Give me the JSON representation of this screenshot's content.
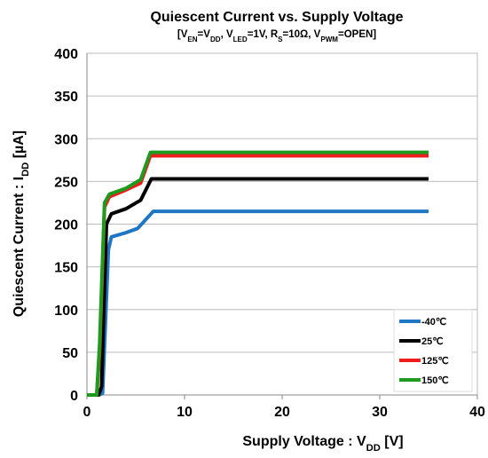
{
  "chart_data": {
    "type": "line",
    "title": "Quiescent Current vs. Supply Voltage",
    "subtitle_parts": [
      {
        "text": "[V"
      },
      {
        "text": "EN",
        "sub": true
      },
      {
        "text": "=V"
      },
      {
        "text": "DD",
        "sub": true
      },
      {
        "text": ", V"
      },
      {
        "text": "LED",
        "sub": true
      },
      {
        "text": "=1V, R"
      },
      {
        "text": "S",
        "sub": true
      },
      {
        "text": "=10Ω, V"
      },
      {
        "text": "PWM",
        "sub": true
      },
      {
        "text": "=OPEN]"
      }
    ],
    "x_label_parts": [
      {
        "text": "Supply Voltage : V"
      },
      {
        "text": "DD",
        "sub": true
      },
      {
        "text": " [V]"
      }
    ],
    "y_label_parts": [
      {
        "text": "Quiescent Current : I"
      },
      {
        "text": "DD",
        "sub": true
      },
      {
        "text": " [µA]"
      }
    ],
    "xlim": [
      0,
      40
    ],
    "xticks": [
      0,
      10,
      20,
      30,
      40
    ],
    "ylim": [
      0,
      400
    ],
    "yticks": [
      0,
      50,
      100,
      150,
      200,
      250,
      300,
      350,
      400
    ],
    "grid": true,
    "legend": "lower right",
    "series": [
      {
        "name": "-40℃",
        "color": "#1f77c4",
        "x": [
          0,
          1.2,
          1.6,
          2.2,
          2.5,
          4,
          5.2,
          6,
          6.8,
          35
        ],
        "values": [
          0,
          0,
          2,
          170,
          185,
          190,
          195,
          205,
          215,
          215
        ]
      },
      {
        "name": "25℃",
        "color": "#000000",
        "x": [
          0,
          1.2,
          1.5,
          2.0,
          2.5,
          4,
          5.5,
          6.6,
          35
        ],
        "values": [
          0,
          0,
          10,
          200,
          212,
          218,
          228,
          253,
          253
        ]
      },
      {
        "name": "125℃",
        "color": "#ee1c1c",
        "x": [
          0,
          1.0,
          1.3,
          1.8,
          2.3,
          4,
          5.5,
          6.5,
          35
        ],
        "values": [
          0,
          0,
          50,
          220,
          232,
          240,
          248,
          280,
          280
        ]
      },
      {
        "name": "150℃",
        "color": "#1e9a1e",
        "x": [
          0,
          1.0,
          1.3,
          1.8,
          2.3,
          4,
          5.5,
          6.5,
          35
        ],
        "values": [
          0,
          0,
          60,
          225,
          235,
          242,
          252,
          284,
          284
        ]
      }
    ]
  }
}
